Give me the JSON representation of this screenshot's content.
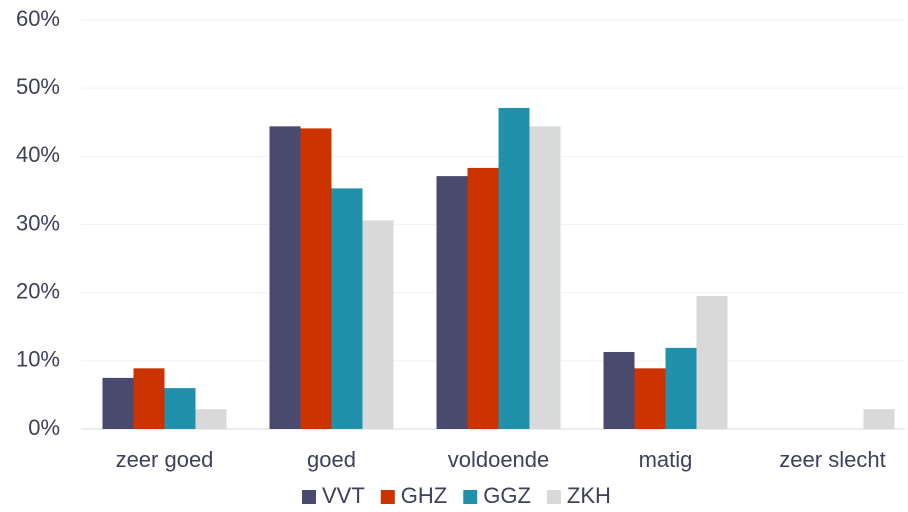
{
  "chart_data": {
    "type": "bar",
    "categories": [
      "zeer goed",
      "goed",
      "voldoende",
      "matig",
      "zeer slecht"
    ],
    "series": [
      {
        "name": "VVT",
        "color": "#4a4a6e",
        "values": [
          7.5,
          44.4,
          37.1,
          11.3,
          0
        ]
      },
      {
        "name": "GHZ",
        "color": "#cc3300",
        "values": [
          8.9,
          44.1,
          38.3,
          8.9,
          0
        ]
      },
      {
        "name": "GGZ",
        "color": "#2191ab",
        "values": [
          6.0,
          35.3,
          47.1,
          11.9,
          0
        ]
      },
      {
        "name": "ZKH",
        "color": "#d9d9d9",
        "values": [
          2.9,
          30.6,
          44.4,
          19.5,
          2.9
        ]
      }
    ],
    "ylim": [
      0,
      60
    ],
    "yticks": [
      {
        "value": 0,
        "label": "0%"
      },
      {
        "value": 10,
        "label": "10%"
      },
      {
        "value": 20,
        "label": "20%"
      },
      {
        "value": 30,
        "label": "30%"
      },
      {
        "value": 40,
        "label": "40%"
      },
      {
        "value": 50,
        "label": "50%"
      },
      {
        "value": 60,
        "label": "60%"
      }
    ],
    "grid": true,
    "legend": "bottom"
  }
}
